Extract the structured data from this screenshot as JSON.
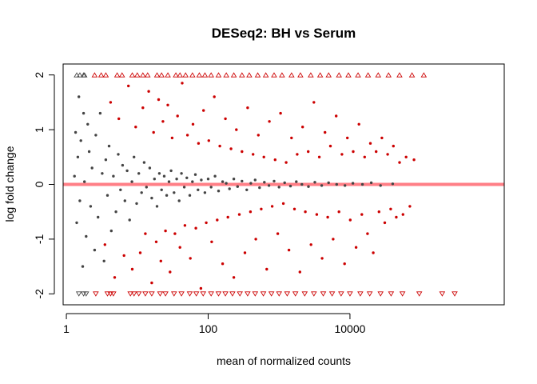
{
  "chart_data": {
    "type": "scatter",
    "title": "DESeq2: BH vs Serum",
    "xlabel": "mean of normalized counts",
    "ylabel": "log fold change",
    "xscale": "log10",
    "xlim": [
      0.9,
      1500000
    ],
    "ylim": [
      -2.2,
      2.2
    ],
    "x_ticks": [
      {
        "value": 1,
        "label": "1"
      },
      {
        "value": 100,
        "label": "100"
      },
      {
        "value": 10000,
        "label": "10000"
      }
    ],
    "y_ticks": [
      {
        "value": -2,
        "label": "-2"
      },
      {
        "value": -1,
        "label": "-1"
      },
      {
        "value": 0,
        "label": "0"
      },
      {
        "value": 1,
        "label": "1"
      },
      {
        "value": 2,
        "label": "2"
      }
    ],
    "reference_line": {
      "y": 0,
      "color": "#ff7f86"
    },
    "grid": false,
    "legend": "none",
    "colors": {
      "significant": "#cc0000",
      "not_significant": "#444444"
    },
    "series": [
      {
        "status": "not_significant",
        "color": "#444444",
        "points": [
          [
            1.3,
            0.15
          ],
          [
            1.35,
            0.95
          ],
          [
            1.4,
            -0.7
          ],
          [
            1.45,
            0.5
          ],
          [
            1.5,
            1.6
          ],
          [
            1.55,
            -0.3
          ],
          [
            1.6,
            0.8
          ],
          [
            1.7,
            -1.5
          ],
          [
            1.75,
            1.3
          ],
          [
            1.8,
            0.05
          ],
          [
            1.9,
            -0.95
          ],
          [
            2.0,
            1.1
          ],
          [
            2.1,
            0.6
          ],
          [
            2.2,
            -0.4
          ],
          [
            2.3,
            0.3
          ],
          [
            2.5,
            -1.2
          ],
          [
            2.6,
            0.9
          ],
          [
            2.8,
            -0.6
          ],
          [
            3.0,
            1.3
          ],
          [
            3.2,
            0.2
          ],
          [
            3.4,
            -1.4
          ],
          [
            3.6,
            0.45
          ],
          [
            3.8,
            -0.2
          ],
          [
            4.0,
            0.7
          ],
          [
            4.3,
            -0.85
          ],
          [
            4.6,
            0.15
          ],
          [
            5.0,
            -0.5
          ],
          [
            5.4,
            0.55
          ],
          [
            5.8,
            -0.1
          ],
          [
            6.2,
            0.35
          ],
          [
            6.7,
            -0.3
          ],
          [
            7.2,
            0.25
          ],
          [
            7.8,
            -0.65
          ],
          [
            8.4,
            0.05
          ],
          [
            9.0,
            0.5
          ],
          [
            9.8,
            -0.35
          ],
          [
            10.5,
            0.2
          ],
          [
            11.5,
            -0.15
          ],
          [
            12.5,
            0.4
          ],
          [
            13.5,
            -0.05
          ],
          [
            15,
            0.3
          ],
          [
            16,
            -0.25
          ],
          [
            17.5,
            0.1
          ],
          [
            19,
            -0.4
          ],
          [
            20.5,
            0.2
          ],
          [
            22,
            -0.1
          ],
          [
            24,
            0.15
          ],
          [
            26,
            -0.2
          ],
          [
            28,
            0.05
          ],
          [
            30,
            0.25
          ],
          [
            33,
            -0.15
          ],
          [
            36,
            0.1
          ],
          [
            39,
            -0.3
          ],
          [
            42,
            0.2
          ],
          [
            46,
            -0.05
          ],
          [
            50,
            0.12
          ],
          [
            55,
            -0.2
          ],
          [
            60,
            0.05
          ],
          [
            66,
            0.18
          ],
          [
            72,
            -0.1
          ],
          [
            80,
            0.08
          ],
          [
            90,
            -0.15
          ],
          [
            100,
            0.1
          ],
          [
            110,
            -0.05
          ],
          [
            125,
            0.15
          ],
          [
            140,
            -0.12
          ],
          [
            160,
            0.05
          ],
          [
            180,
            0.02
          ],
          [
            200,
            -0.08
          ],
          [
            230,
            0.1
          ],
          [
            260,
            -0.04
          ],
          [
            300,
            0.06
          ],
          [
            350,
            -0.1
          ],
          [
            400,
            0.02
          ],
          [
            460,
            0.08
          ],
          [
            530,
            -0.06
          ],
          [
            620,
            0.04
          ],
          [
            720,
            -0.02
          ],
          [
            850,
            0.06
          ],
          [
            1000,
            -0.05
          ],
          [
            1200,
            0.03
          ],
          [
            1450,
            -0.03
          ],
          [
            1750,
            0.05
          ],
          [
            2100,
            0.0
          ],
          [
            2600,
            -0.04
          ],
          [
            3200,
            0.04
          ],
          [
            4000,
            -0.02
          ],
          [
            5000,
            0.03
          ],
          [
            6500,
            0.0
          ],
          [
            8500,
            -0.02
          ],
          [
            11000,
            0.02
          ],
          [
            15000,
            0.0
          ],
          [
            20000,
            0.03
          ],
          [
            27000,
            -0.02
          ],
          [
            40000,
            0.01
          ]
        ]
      },
      {
        "status": "significant",
        "color": "#cc0000",
        "points": [
          [
            3.5,
            -1.1
          ],
          [
            4.2,
            1.5
          ],
          [
            4.8,
            -1.7
          ],
          [
            5.5,
            1.2
          ],
          [
            6.5,
            -1.3
          ],
          [
            7.5,
            1.8
          ],
          [
            8.5,
            -1.55
          ],
          [
            9.5,
            1.05
          ],
          [
            11,
            -1.25
          ],
          [
            12,
            1.4
          ],
          [
            13,
            -0.9
          ],
          [
            14.5,
            1.7
          ],
          [
            16,
            -1.8
          ],
          [
            17,
            0.95
          ],
          [
            18.5,
            -1.05
          ],
          [
            20,
            1.55
          ],
          [
            21.5,
            -1.4
          ],
          [
            23,
            1.15
          ],
          [
            25,
            -0.85
          ],
          [
            27,
            1.45
          ],
          [
            29,
            -1.6
          ],
          [
            31,
            0.85
          ],
          [
            34,
            -0.9
          ],
          [
            37,
            1.25
          ],
          [
            40,
            -1.15
          ],
          [
            43,
            1.85
          ],
          [
            47,
            -0.75
          ],
          [
            51,
            0.9
          ],
          [
            56,
            -1.35
          ],
          [
            61,
            1.1
          ],
          [
            67,
            -0.8
          ],
          [
            73,
            0.75
          ],
          [
            79,
            -1.9
          ],
          [
            86,
            1.35
          ],
          [
            94,
            -0.7
          ],
          [
            102,
            0.8
          ],
          [
            112,
            -1.05
          ],
          [
            122,
            1.6
          ],
          [
            134,
            -0.65
          ],
          [
            146,
            0.7
          ],
          [
            160,
            -1.45
          ],
          [
            175,
            1.2
          ],
          [
            190,
            -0.6
          ],
          [
            210,
            0.65
          ],
          [
            230,
            -1.7
          ],
          [
            250,
            1.0
          ],
          [
            275,
            -0.55
          ],
          [
            300,
            0.6
          ],
          [
            330,
            -1.25
          ],
          [
            360,
            1.4
          ],
          [
            395,
            -0.5
          ],
          [
            430,
            0.55
          ],
          [
            470,
            -1.0
          ],
          [
            510,
            0.9
          ],
          [
            560,
            -0.45
          ],
          [
            610,
            0.5
          ],
          [
            670,
            -1.55
          ],
          [
            730,
            1.15
          ],
          [
            800,
            -0.4
          ],
          [
            880,
            0.45
          ],
          [
            960,
            -0.9
          ],
          [
            1050,
            1.3
          ],
          [
            1150,
            -0.35
          ],
          [
            1260,
            0.4
          ],
          [
            1380,
            -1.2
          ],
          [
            1500,
            0.85
          ],
          [
            1650,
            -0.45
          ],
          [
            1800,
            0.55
          ],
          [
            1970,
            -1.6
          ],
          [
            2150,
            1.05
          ],
          [
            2350,
            -0.5
          ],
          [
            2580,
            0.6
          ],
          [
            2820,
            -1.1
          ],
          [
            3100,
            1.5
          ],
          [
            3400,
            -0.55
          ],
          [
            3700,
            0.5
          ],
          [
            4050,
            -1.35
          ],
          [
            4450,
            0.95
          ],
          [
            4850,
            -0.6
          ],
          [
            5300,
            0.7
          ],
          [
            5800,
            -1.0
          ],
          [
            6400,
            1.25
          ],
          [
            7000,
            -0.5
          ],
          [
            7700,
            0.55
          ],
          [
            8400,
            -1.45
          ],
          [
            9200,
            0.85
          ],
          [
            10100,
            -0.65
          ],
          [
            11100,
            0.6
          ],
          [
            12200,
            -1.15
          ],
          [
            13400,
            1.1
          ],
          [
            14700,
            -0.55
          ],
          [
            16100,
            0.5
          ],
          [
            17700,
            -0.9
          ],
          [
            19400,
            0.75
          ],
          [
            21300,
            -1.25
          ],
          [
            23400,
            0.6
          ],
          [
            25700,
            -0.5
          ],
          [
            28200,
            0.85
          ],
          [
            31000,
            -0.7
          ],
          [
            34000,
            0.55
          ],
          [
            37500,
            -0.45
          ],
          [
            41000,
            0.7
          ],
          [
            45000,
            -0.6
          ],
          [
            50000,
            0.4
          ],
          [
            56000,
            -0.55
          ],
          [
            62000,
            0.5
          ],
          [
            70000,
            -0.4
          ],
          [
            80000,
            0.45
          ]
        ]
      }
    ],
    "capped_points": {
      "up": {
        "y": 2,
        "marker": "triangle-up",
        "not_significant_x": [
          1.4,
          1.55,
          1.75,
          1.8
        ],
        "significant_x": [
          2.5,
          3.1,
          3.6,
          5.2,
          6.1,
          8.5,
          10,
          12,
          14,
          19,
          22,
          27,
          35,
          40,
          48,
          60,
          75,
          90,
          110,
          140,
          180,
          230,
          300,
          380,
          500,
          650,
          850,
          1100,
          1500,
          2000,
          2800,
          3800,
          5000,
          7000,
          9500,
          13000,
          18000,
          25000,
          35000,
          50000,
          75000,
          110000
        ]
      },
      "down": {
        "y": -2,
        "marker": "triangle-down",
        "not_significant_x": [
          1.5,
          1.75,
          1.9
        ],
        "significant_x": [
          2.6,
          3.8,
          4.2,
          4.6,
          8,
          9,
          10.5,
          13,
          16,
          21,
          25,
          33,
          42,
          55,
          68,
          85,
          110,
          140,
          175,
          220,
          280,
          360,
          460,
          600,
          780,
          1000,
          1300,
          1700,
          2300,
          3100,
          4200,
          5600,
          7500,
          10000,
          14000,
          19000,
          27000,
          38000,
          55000,
          95000,
          200000,
          300000
        ]
      }
    }
  }
}
